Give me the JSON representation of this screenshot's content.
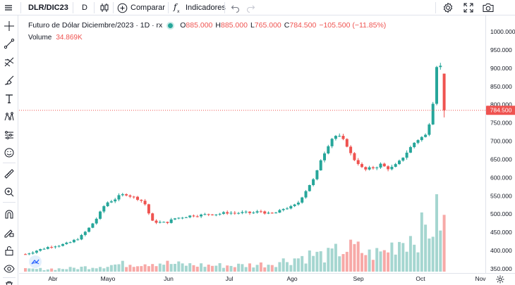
{
  "toolbar": {
    "symbol": "DLR/DIC23",
    "interval": "D",
    "compare_label": "Comparar",
    "indicators_label": "Indicadores"
  },
  "legend": {
    "title": "Futuro de Dólar Diciembre/2023 · 1D · rx",
    "open_label": "O",
    "open": "885.000",
    "high_label": "H",
    "high": "885.000",
    "low_label": "L",
    "low": "765.000",
    "close_label": "C",
    "close": "784.500",
    "change": "−105.500 (−11.85%)",
    "volume_label": "Volume",
    "volume_value": "34.869K"
  },
  "colors": {
    "up": "#26a69a",
    "down": "#ef5350",
    "vol_up": "#a5d6d0",
    "vol_down": "#f7a9a7",
    "accent": "#2962ff"
  },
  "chart_data": {
    "type": "candlestick",
    "y_ticks": [
      "1000.000",
      "950.000",
      "900.000",
      "850.000",
      "800.000",
      "750.000",
      "700.000",
      "650.000",
      "600.000",
      "550.000",
      "500.000",
      "450.000",
      "400.000",
      "350.000"
    ],
    "x_ticks": [
      "Abr",
      "Mayo",
      "Jun",
      "Jul",
      "Ago",
      "Sep",
      "Oct",
      "Nov"
    ],
    "last_price": "784.500",
    "ylim": [
      340,
      1010
    ],
    "price_path": [
      [
        0,
        390
      ],
      [
        6,
        398
      ],
      [
        12,
        405
      ],
      [
        18,
        412
      ],
      [
        24,
        415
      ],
      [
        30,
        420
      ],
      [
        38,
        436
      ],
      [
        44,
        460
      ],
      [
        50,
        490
      ],
      [
        56,
        530
      ],
      [
        62,
        540
      ],
      [
        66,
        551
      ],
      [
        70,
        555
      ],
      [
        74,
        548
      ],
      [
        80,
        540
      ],
      [
        84,
        525
      ],
      [
        88,
        480
      ],
      [
        92,
        478
      ],
      [
        98,
        476
      ],
      [
        104,
        488
      ],
      [
        110,
        492
      ],
      [
        116,
        496
      ],
      [
        122,
        497
      ],
      [
        128,
        500
      ],
      [
        134,
        500
      ],
      [
        140,
        504
      ],
      [
        146,
        503
      ],
      [
        152,
        504
      ],
      [
        158,
        503
      ],
      [
        164,
        508
      ],
      [
        170,
        500
      ],
      [
        176,
        505
      ],
      [
        180,
        515
      ],
      [
        186,
        520
      ],
      [
        190,
        530
      ],
      [
        194,
        555
      ],
      [
        198,
        580
      ],
      [
        202,
        600
      ],
      [
        206,
        650
      ],
      [
        210,
        680
      ],
      [
        213,
        705
      ],
      [
        216,
        715
      ],
      [
        220,
        710
      ],
      [
        224,
        690
      ],
      [
        228,
        655
      ],
      [
        232,
        640
      ],
      [
        236,
        620
      ],
      [
        240,
        625
      ],
      [
        244,
        628
      ],
      [
        248,
        637
      ],
      [
        252,
        625
      ],
      [
        256,
        628
      ],
      [
        260,
        640
      ],
      [
        264,
        660
      ],
      [
        268,
        680
      ],
      [
        272,
        700
      ],
      [
        276,
        710
      ],
      [
        280,
        718
      ],
      [
        284,
        800
      ],
      [
        286,
        880
      ],
      [
        288,
        950
      ],
      [
        290,
        885
      ],
      [
        292,
        785
      ]
    ],
    "volume_path": [
      [
        0,
        0.03
      ],
      [
        30,
        0.04
      ],
      [
        50,
        0.07
      ],
      [
        70,
        0.1
      ],
      [
        90,
        0.12
      ],
      [
        110,
        0.09
      ],
      [
        130,
        0.08
      ],
      [
        150,
        0.08
      ],
      [
        170,
        0.1
      ],
      [
        190,
        0.18
      ],
      [
        200,
        0.22
      ],
      [
        210,
        0.2
      ],
      [
        220,
        0.28
      ],
      [
        230,
        0.3
      ],
      [
        240,
        0.22
      ],
      [
        250,
        0.25
      ],
      [
        260,
        0.4
      ],
      [
        270,
        0.46
      ],
      [
        280,
        0.55
      ],
      [
        285,
        0.62
      ],
      [
        288,
        0.78
      ],
      [
        292,
        0.6
      ]
    ]
  }
}
